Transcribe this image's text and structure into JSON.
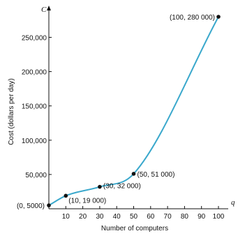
{
  "chart_data": {
    "type": "line",
    "xlabel": "Number of computers",
    "ylabel": "Cost (dollars per day)",
    "x_var": "q",
    "y_var": "C",
    "xlim": [
      0,
      100
    ],
    "ylim": [
      0,
      280000
    ],
    "x_ticks": [
      10,
      20,
      30,
      40,
      50,
      60,
      70,
      80,
      90,
      100
    ],
    "y_ticks": [
      50000,
      100000,
      150000,
      200000,
      250000
    ],
    "x_tick_labels": [
      "10",
      "20",
      "30",
      "40",
      "50",
      "60",
      "70",
      "80",
      "90",
      "100"
    ],
    "y_tick_labels": [
      "50,000",
      "100,000",
      "150,000",
      "200,000",
      "250,000"
    ],
    "curve_color": "#3aa8cc",
    "series": [
      {
        "x": [
          0,
          10,
          30,
          50,
          100
        ],
        "y": [
          5000,
          19000,
          32000,
          51000,
          280000
        ]
      }
    ],
    "points": [
      {
        "x": 0,
        "y": 5000,
        "label": "(0, 5000)"
      },
      {
        "x": 10,
        "y": 19000,
        "label": "(10, 19 000)"
      },
      {
        "x": 30,
        "y": 32000,
        "label": "(30, 32 000)"
      },
      {
        "x": 50,
        "y": 51000,
        "label": "(50, 51 000)"
      },
      {
        "x": 100,
        "y": 280000,
        "label": "(100, 280 000)"
      }
    ]
  }
}
